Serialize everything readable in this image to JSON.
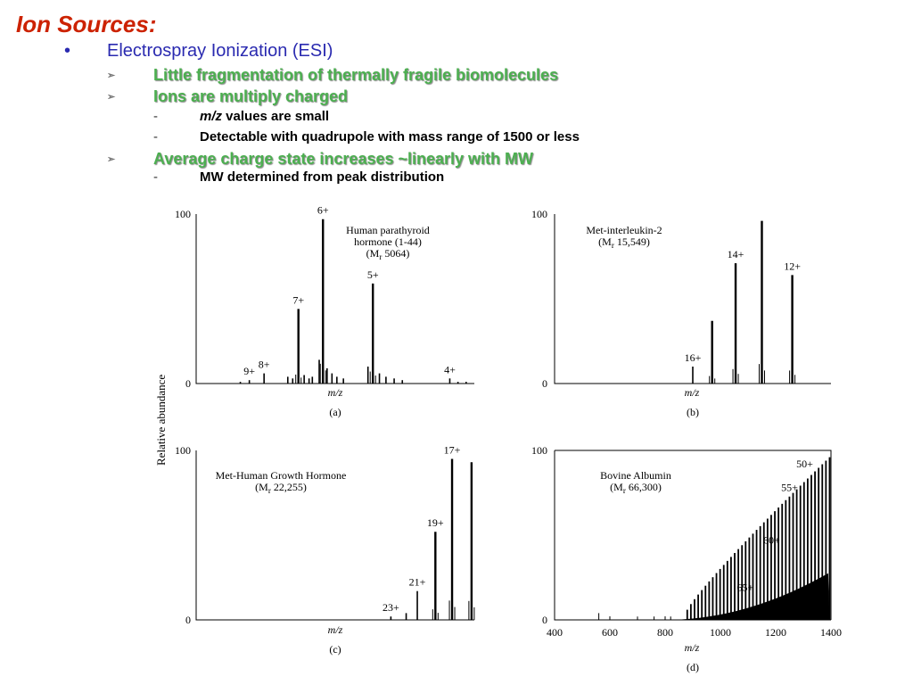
{
  "slide": {
    "title": "Ion Sources:",
    "bullet": "Electrospray Ionization (ESI)",
    "items": [
      {
        "text": "Little fragmentation of thermally fragile biomolecules",
        "subs": []
      },
      {
        "text": "Ions are multiply charged",
        "subs": [
          {
            "em": "m/z",
            "text": " values are small"
          },
          {
            "em": "",
            "text": "Detectable with quadrupole with mass range of 1500 or less"
          }
        ]
      },
      {
        "text": "Average charge state increases ~linearly with MW",
        "subs": [
          {
            "em": "",
            "text": "MW determined from peak distribution"
          }
        ]
      }
    ],
    "bullet_glyph": "•",
    "arrow_glyph": "➢",
    "dash_glyph": "-"
  },
  "chart_data": [
    {
      "type": "bar",
      "panel": "(a)",
      "title_lines": [
        "Human parathyroid",
        "hormone (1-44)"
      ],
      "mr": "5064",
      "xlabel": "m/z",
      "ylabel": "Relative abundance",
      "ylim": [
        0,
        100
      ],
      "yticks": [
        "100",
        "0"
      ],
      "xlim": [
        0,
        1
      ],
      "peaks": [
        {
          "x": 0.27,
          "y": 1,
          "label": ""
        },
        {
          "x": 0.325,
          "y": 2,
          "label": "9+"
        },
        {
          "x": 0.415,
          "y": 6,
          "label": "8+"
        },
        {
          "x": 0.56,
          "y": 4,
          "label": ""
        },
        {
          "x": 0.59,
          "y": 3,
          "label": ""
        },
        {
          "x": 0.625,
          "y": 44,
          "label": "7+"
        },
        {
          "x": 0.66,
          "y": 5,
          "label": ""
        },
        {
          "x": 0.69,
          "y": 3,
          "label": ""
        },
        {
          "x": 0.71,
          "y": 4,
          "label": ""
        },
        {
          "x": 0.752,
          "y": 14,
          "label": ""
        },
        {
          "x": 0.775,
          "y": 97,
          "label": "6+"
        },
        {
          "x": 0.8,
          "y": 9,
          "label": ""
        },
        {
          "x": 0.83,
          "y": 6,
          "label": ""
        },
        {
          "x": 0.86,
          "y": 4,
          "label": ""
        },
        {
          "x": 0.9,
          "y": 3,
          "label": ""
        },
        {
          "x": 1.05,
          "y": 10,
          "label": ""
        },
        {
          "x": 1.08,
          "y": 59,
          "label": "5+"
        },
        {
          "x": 1.12,
          "y": 6,
          "label": ""
        },
        {
          "x": 1.16,
          "y": 4,
          "label": ""
        },
        {
          "x": 1.21,
          "y": 3,
          "label": ""
        },
        {
          "x": 1.26,
          "y": 2,
          "label": ""
        },
        {
          "x": 1.55,
          "y": 3,
          "label": "4+"
        },
        {
          "x": 1.6,
          "y": 1,
          "label": ""
        },
        {
          "x": 1.65,
          "y": 1,
          "label": ""
        }
      ]
    },
    {
      "type": "bar",
      "panel": "(b)",
      "title_lines": [
        "Met-interleukin-2"
      ],
      "mr": "15,549",
      "xlabel": "m/z",
      "ylim": [
        0,
        100
      ],
      "yticks": [
        "100",
        "0"
      ],
      "peaks": [
        {
          "x": 0.5,
          "y": 10,
          "label": "16+"
        },
        {
          "x": 0.57,
          "y": 37,
          "label": ""
        },
        {
          "x": 0.655,
          "y": 71,
          "label": "14+"
        },
        {
          "x": 0.75,
          "y": 96,
          "label": ""
        },
        {
          "x": 0.86,
          "y": 64,
          "label": "12+"
        }
      ]
    },
    {
      "type": "bar",
      "panel": "(c)",
      "title_lines": [
        "Met-Human Growth Hormone"
      ],
      "mr": "22,255",
      "xlabel": "m/z",
      "ylim": [
        0,
        100
      ],
      "yticks": [
        "100",
        "0"
      ],
      "peaks": [
        {
          "x": 0.7,
          "y": 2,
          "label": "23+"
        },
        {
          "x": 0.755,
          "y": 4,
          "label": ""
        },
        {
          "x": 0.795,
          "y": 17,
          "label": "21+"
        },
        {
          "x": 0.86,
          "y": 52,
          "label": "19+"
        },
        {
          "x": 0.92,
          "y": 95,
          "label": "17+"
        },
        {
          "x": 0.99,
          "y": 93,
          "label": ""
        }
      ],
      "peak_labels_extra": []
    },
    {
      "type": "bar",
      "panel": "(d)",
      "title_lines": [
        "Bovine Albumin"
      ],
      "mr": "66,300",
      "xlabel": "m/z",
      "xlim": [
        400,
        1400
      ],
      "xticks": [
        "400",
        "600",
        "800",
        "1000",
        "1200",
        "1400"
      ],
      "ylim": [
        0,
        100
      ],
      "yticks": [
        "100",
        "0"
      ],
      "labels": [
        {
          "x": 1305,
          "y": 90,
          "label": "50+"
        },
        {
          "x": 1250,
          "y": 76,
          "label": "55+"
        },
        {
          "x": 1185,
          "y": 45,
          "label": "60+"
        },
        {
          "x": 1090,
          "y": 17,
          "label": "65+"
        }
      ],
      "series": {
        "start": 880,
        "end": 1395,
        "count": 40
      }
    }
  ]
}
